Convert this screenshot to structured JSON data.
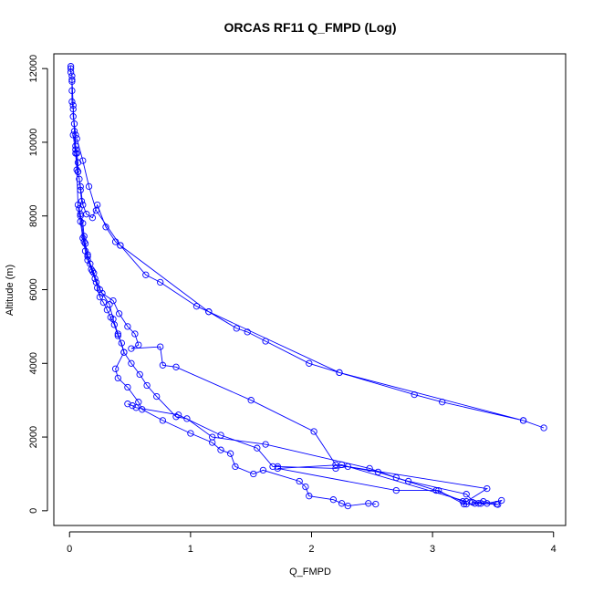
{
  "chart_data": {
    "type": "line",
    "title": "ORCAS RF11 Q_FMPD (Log)",
    "xlabel": "Q_FMPD",
    "ylabel": "Altitude (m)",
    "xlim": [
      -0.13,
      4.1
    ],
    "ylim": [
      -400,
      12400
    ],
    "x_ticks": [
      0,
      1,
      2,
      3,
      4
    ],
    "y_ticks": [
      0,
      2000,
      4000,
      6000,
      8000,
      10000,
      12000
    ],
    "grid": false,
    "legend": "none",
    "color": "#0000ff",
    "series": [
      {
        "values": [
          {
            "x": 0.01,
            "y": 12060
          },
          {
            "x": 0.01,
            "y": 12000
          },
          {
            "x": 0.01,
            "y": 11900
          },
          {
            "x": 0.02,
            "y": 11800
          },
          {
            "x": 0.02,
            "y": 11650
          },
          {
            "x": 0.02,
            "y": 11400
          },
          {
            "x": 0.02,
            "y": 11100
          },
          {
            "x": 0.03,
            "y": 10900
          },
          {
            "x": 0.03,
            "y": 10700
          },
          {
            "x": 0.04,
            "y": 10500
          },
          {
            "x": 0.05,
            "y": 10200
          },
          {
            "x": 0.05,
            "y": 9900
          },
          {
            "x": 0.06,
            "y": 9700
          },
          {
            "x": 0.07,
            "y": 9450
          },
          {
            "x": 0.07,
            "y": 9200
          },
          {
            "x": 0.08,
            "y": 9000
          },
          {
            "x": 0.09,
            "y": 8700
          },
          {
            "x": 0.1,
            "y": 8400
          },
          {
            "x": 0.08,
            "y": 8200
          },
          {
            "x": 0.09,
            "y": 8000
          },
          {
            "x": 0.11,
            "y": 7800
          },
          {
            "x": 0.12,
            "y": 7450
          },
          {
            "x": 0.13,
            "y": 7250
          },
          {
            "x": 0.15,
            "y": 6950
          },
          {
            "x": 0.17,
            "y": 6700
          },
          {
            "x": 0.19,
            "y": 6500
          },
          {
            "x": 0.21,
            "y": 6300
          },
          {
            "x": 0.23,
            "y": 6050
          },
          {
            "x": 0.25,
            "y": 5800
          },
          {
            "x": 0.28,
            "y": 5650
          },
          {
            "x": 0.31,
            "y": 5450
          },
          {
            "x": 0.34,
            "y": 5250
          },
          {
            "x": 0.37,
            "y": 5050
          },
          {
            "x": 0.4,
            "y": 4750
          },
          {
            "x": 0.43,
            "y": 4550
          },
          {
            "x": 0.45,
            "y": 4300
          },
          {
            "x": 0.38,
            "y": 3850
          },
          {
            "x": 0.4,
            "y": 3600
          },
          {
            "x": 0.48,
            "y": 3350
          },
          {
            "x": 0.57,
            "y": 2950
          },
          {
            "x": 0.6,
            "y": 2750
          },
          {
            "x": 0.77,
            "y": 2450
          },
          {
            "x": 1.0,
            "y": 2100
          },
          {
            "x": 1.18,
            "y": 1850
          },
          {
            "x": 1.25,
            "y": 1650
          },
          {
            "x": 1.33,
            "y": 1550
          },
          {
            "x": 1.37,
            "y": 1200
          },
          {
            "x": 1.52,
            "y": 1000
          },
          {
            "x": 1.6,
            "y": 1100
          },
          {
            "x": 1.9,
            "y": 800
          },
          {
            "x": 1.95,
            "y": 650
          },
          {
            "x": 1.98,
            "y": 400
          },
          {
            "x": 2.18,
            "y": 300
          },
          {
            "x": 2.25,
            "y": 200
          },
          {
            "x": 2.3,
            "y": 130
          },
          {
            "x": 2.47,
            "y": 200
          },
          {
            "x": 2.53,
            "y": 180
          }
        ]
      },
      {
        "values": [
          {
            "x": 0.02,
            "y": 11700
          },
          {
            "x": 0.03,
            "y": 11000
          },
          {
            "x": 0.04,
            "y": 10300
          },
          {
            "x": 0.05,
            "y": 9800
          },
          {
            "x": 0.07,
            "y": 9200
          },
          {
            "x": 0.09,
            "y": 8800
          },
          {
            "x": 0.11,
            "y": 8300
          },
          {
            "x": 0.14,
            "y": 8050
          },
          {
            "x": 0.19,
            "y": 7950
          },
          {
            "x": 0.23,
            "y": 8300
          },
          {
            "x": 0.3,
            "y": 7700
          },
          {
            "x": 0.38,
            "y": 7300
          },
          {
            "x": 0.42,
            "y": 7200
          },
          {
            "x": 0.63,
            "y": 6400
          },
          {
            "x": 0.75,
            "y": 6200
          },
          {
            "x": 1.05,
            "y": 5550
          },
          {
            "x": 1.15,
            "y": 5400
          },
          {
            "x": 1.38,
            "y": 4950
          },
          {
            "x": 1.47,
            "y": 4850
          },
          {
            "x": 1.62,
            "y": 4600
          },
          {
            "x": 1.98,
            "y": 4000
          },
          {
            "x": 2.23,
            "y": 3750
          },
          {
            "x": 2.85,
            "y": 3150
          },
          {
            "x": 3.08,
            "y": 2950
          },
          {
            "x": 3.75,
            "y": 2450
          },
          {
            "x": 3.92,
            "y": 2250
          },
          {
            "x": 3.75,
            "y": 2450
          },
          {
            "x": 2.23,
            "y": 3750
          },
          {
            "x": 1.15,
            "y": 5400
          },
          {
            "x": 0.42,
            "y": 7200
          },
          {
            "x": 0.22,
            "y": 8150
          },
          {
            "x": 0.16,
            "y": 8800
          },
          {
            "x": 0.11,
            "y": 9500
          },
          {
            "x": 0.06,
            "y": 10100
          }
        ]
      },
      {
        "values": [
          {
            "x": 0.03,
            "y": 10200
          },
          {
            "x": 0.05,
            "y": 9700
          },
          {
            "x": 0.06,
            "y": 9250
          },
          {
            "x": 0.07,
            "y": 8300
          },
          {
            "x": 0.09,
            "y": 7850
          },
          {
            "x": 0.11,
            "y": 7400
          },
          {
            "x": 0.13,
            "y": 7050
          },
          {
            "x": 0.15,
            "y": 6800
          },
          {
            "x": 0.18,
            "y": 6550
          },
          {
            "x": 0.22,
            "y": 6200
          },
          {
            "x": 0.27,
            "y": 5900
          },
          {
            "x": 0.36,
            "y": 5700
          },
          {
            "x": 0.41,
            "y": 5350
          },
          {
            "x": 0.48,
            "y": 5000
          },
          {
            "x": 0.54,
            "y": 4800
          },
          {
            "x": 0.57,
            "y": 4500
          },
          {
            "x": 0.51,
            "y": 4400
          },
          {
            "x": 0.75,
            "y": 4450
          },
          {
            "x": 0.77,
            "y": 3950
          },
          {
            "x": 0.88,
            "y": 3900
          },
          {
            "x": 1.5,
            "y": 3000
          },
          {
            "x": 2.02,
            "y": 2150
          },
          {
            "x": 2.2,
            "y": 1250
          },
          {
            "x": 2.55,
            "y": 1050
          },
          {
            "x": 3.03,
            "y": 550
          },
          {
            "x": 3.25,
            "y": 250
          },
          {
            "x": 3.28,
            "y": 180
          },
          {
            "x": 3.4,
            "y": 200
          },
          {
            "x": 3.54,
            "y": 170
          },
          {
            "x": 3.57,
            "y": 280
          },
          {
            "x": 3.45,
            "y": 200
          },
          {
            "x": 3.33,
            "y": 230
          }
        ]
      },
      {
        "values": [
          {
            "x": 0.09,
            "y": 8050
          },
          {
            "x": 0.12,
            "y": 7300
          },
          {
            "x": 0.15,
            "y": 6900
          },
          {
            "x": 0.2,
            "y": 6450
          },
          {
            "x": 0.25,
            "y": 6000
          },
          {
            "x": 0.33,
            "y": 5600
          },
          {
            "x": 0.36,
            "y": 5200
          },
          {
            "x": 0.4,
            "y": 4800
          },
          {
            "x": 0.45,
            "y": 4300
          },
          {
            "x": 0.51,
            "y": 4000
          },
          {
            "x": 0.58,
            "y": 3700
          },
          {
            "x": 0.64,
            "y": 3400
          },
          {
            "x": 0.72,
            "y": 3100
          },
          {
            "x": 0.88,
            "y": 2550
          },
          {
            "x": 0.97,
            "y": 2500
          },
          {
            "x": 1.18,
            "y": 2000
          },
          {
            "x": 1.62,
            "y": 1800
          },
          {
            "x": 2.48,
            "y": 1150
          },
          {
            "x": 2.7,
            "y": 900
          },
          {
            "x": 2.8,
            "y": 800
          },
          {
            "x": 3.28,
            "y": 450
          },
          {
            "x": 3.35,
            "y": 200
          },
          {
            "x": 3.42,
            "y": 250
          },
          {
            "x": 3.53,
            "y": 180
          }
        ]
      },
      {
        "values": [
          {
            "x": 0.48,
            "y": 2900
          },
          {
            "x": 0.52,
            "y": 2850
          },
          {
            "x": 0.55,
            "y": 2800
          },
          {
            "x": 0.9,
            "y": 2600
          },
          {
            "x": 1.25,
            "y": 2050
          },
          {
            "x": 1.55,
            "y": 1700
          },
          {
            "x": 1.68,
            "y": 1200
          },
          {
            "x": 1.72,
            "y": 1200
          },
          {
            "x": 2.2,
            "y": 1150
          },
          {
            "x": 2.3,
            "y": 1200
          },
          {
            "x": 3.45,
            "y": 600
          },
          {
            "x": 3.28,
            "y": 250
          },
          {
            "x": 2.25,
            "y": 1250
          },
          {
            "x": 1.72,
            "y": 1150
          },
          {
            "x": 2.7,
            "y": 550
          },
          {
            "x": 3.05,
            "y": 550
          },
          {
            "x": 3.26,
            "y": 180
          },
          {
            "x": 3.38,
            "y": 200
          }
        ]
      }
    ]
  }
}
